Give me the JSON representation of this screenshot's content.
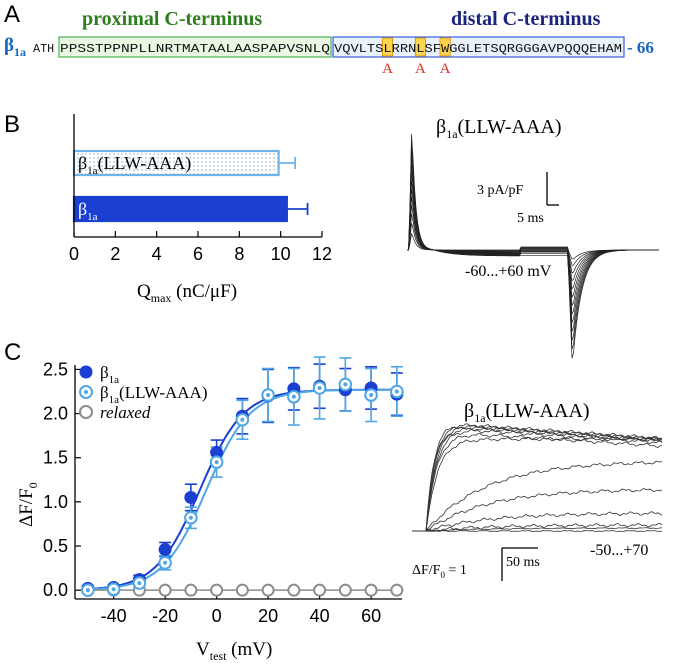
{
  "panels": {
    "a": "A",
    "b": "B",
    "c": "C"
  },
  "panel_a": {
    "prefix": "β",
    "prefix_sub": "1a",
    "proximal_label": "proximal C-terminus",
    "distal_label": "distal C-terminus",
    "lead": "ATH",
    "proximal_seq": "PPSSTPPNPLLNRTMATAALAASPAPVSNLQ",
    "distal_seq": "VQVLTSLRRNLSFWGGLETSQRGGGAVPQQQEHAM",
    "suffix": "- 66",
    "mutation_letter": "A",
    "mutated_positions": [
      6,
      10,
      13
    ],
    "colors": {
      "proximal": "#2e7d1e",
      "distal": "#1a237e",
      "mutation": "#d9301e",
      "highlight": "#ffd54f",
      "prefix": "#1565c0"
    }
  },
  "panel_b_traces": {
    "title": "β",
    "title_sub": "1a",
    "title_rest": "(LLW-AAA)",
    "scale_y": "3 pA/pF",
    "scale_x": "5 ms",
    "range": "-60...+60 mV"
  },
  "panel_c_traces": {
    "title": "β",
    "title_sub": "1a",
    "title_rest": "(LLW-AAA)",
    "scale_label": "ΔF/F",
    "scale_label_sub": "0",
    "scale_value": " = 1",
    "scale_x": "50 ms",
    "range": "-50...+70"
  },
  "chart_data": [
    {
      "type": "bar",
      "orientation": "horizontal",
      "categories": [
        "β1a(LLW-AAA)",
        "β1a"
      ],
      "category_display": [
        {
          "main": "β",
          "sub": "1a",
          "rest": "(LLW-AAA)"
        },
        {
          "main": "β",
          "sub": "1a",
          "rest": ""
        }
      ],
      "values": [
        9.9,
        10.3
      ],
      "errors": [
        0.8,
        1.0
      ],
      "colors": [
        "#6fb3e8",
        "#1a3fd1"
      ],
      "patterns": [
        "dotted",
        "solid"
      ],
      "xlabel": "Q",
      "xlabel_sub": "max",
      "xlabel_rest": " (nC/μF)",
      "xlim": [
        0,
        12
      ],
      "xticks": [
        0,
        2,
        4,
        6,
        8,
        10,
        12
      ]
    },
    {
      "type": "line",
      "xlabel": "V",
      "xlabel_sub": "test",
      "xlabel_rest": " (mV)",
      "ylabel": "ΔF/F",
      "ylabel_sub": "0",
      "xlim": [
        -55,
        72
      ],
      "ylim": [
        -0.1,
        2.55
      ],
      "xticks": [
        -40,
        -20,
        0,
        20,
        40,
        60
      ],
      "yticks": [
        0.0,
        0.5,
        1.0,
        1.5,
        2.0,
        2.5
      ],
      "x": [
        -50,
        -40,
        -30,
        -20,
        -10,
        0,
        10,
        20,
        30,
        40,
        50,
        60,
        70
      ],
      "series": [
        {
          "name": "β1a",
          "label_main": "β",
          "label_sub": "1a",
          "label_rest": "",
          "style": "filled",
          "color": "#1a3fd1",
          "y": [
            0.02,
            0.03,
            0.12,
            0.46,
            1.05,
            1.56,
            1.97,
            2.2,
            2.28,
            2.31,
            2.27,
            2.29,
            2.22
          ],
          "err": [
            0.03,
            0.03,
            0.05,
            0.08,
            0.15,
            0.14,
            0.2,
            0.3,
            0.24,
            0.25,
            0.24,
            0.24,
            0.24
          ],
          "fit": {
            "vmax": 2.27,
            "vhalf": -6.5,
            "k": 8.5
          }
        },
        {
          "name": "β1a(LLW-AAA)",
          "label_main": "β",
          "label_sub": "1a",
          "label_rest": "(LLW-AAA)",
          "style": "open-dot",
          "color": "#4ea6e6",
          "y": [
            0.0,
            0.01,
            0.08,
            0.31,
            0.82,
            1.45,
            1.93,
            2.21,
            2.19,
            2.29,
            2.33,
            2.21,
            2.25
          ],
          "err": [
            0.03,
            0.03,
            0.05,
            0.08,
            0.12,
            0.17,
            0.22,
            0.3,
            0.32,
            0.35,
            0.3,
            0.3,
            0.28
          ],
          "fit": {
            "vmax": 2.27,
            "vhalf": -4.0,
            "k": 8.5
          }
        },
        {
          "name": "relaxed",
          "label_main": "relaxed",
          "label_sub": "",
          "label_rest": "",
          "style": "open",
          "color": "#8c8c8c",
          "italic": true,
          "y": [
            0.0,
            0.0,
            0.0,
            0.0,
            0.0,
            0.0,
            0.0,
            0.0,
            0.0,
            0.0,
            0.0,
            0.0,
            0.0
          ]
        }
      ],
      "legend_position": "top-left"
    }
  ]
}
